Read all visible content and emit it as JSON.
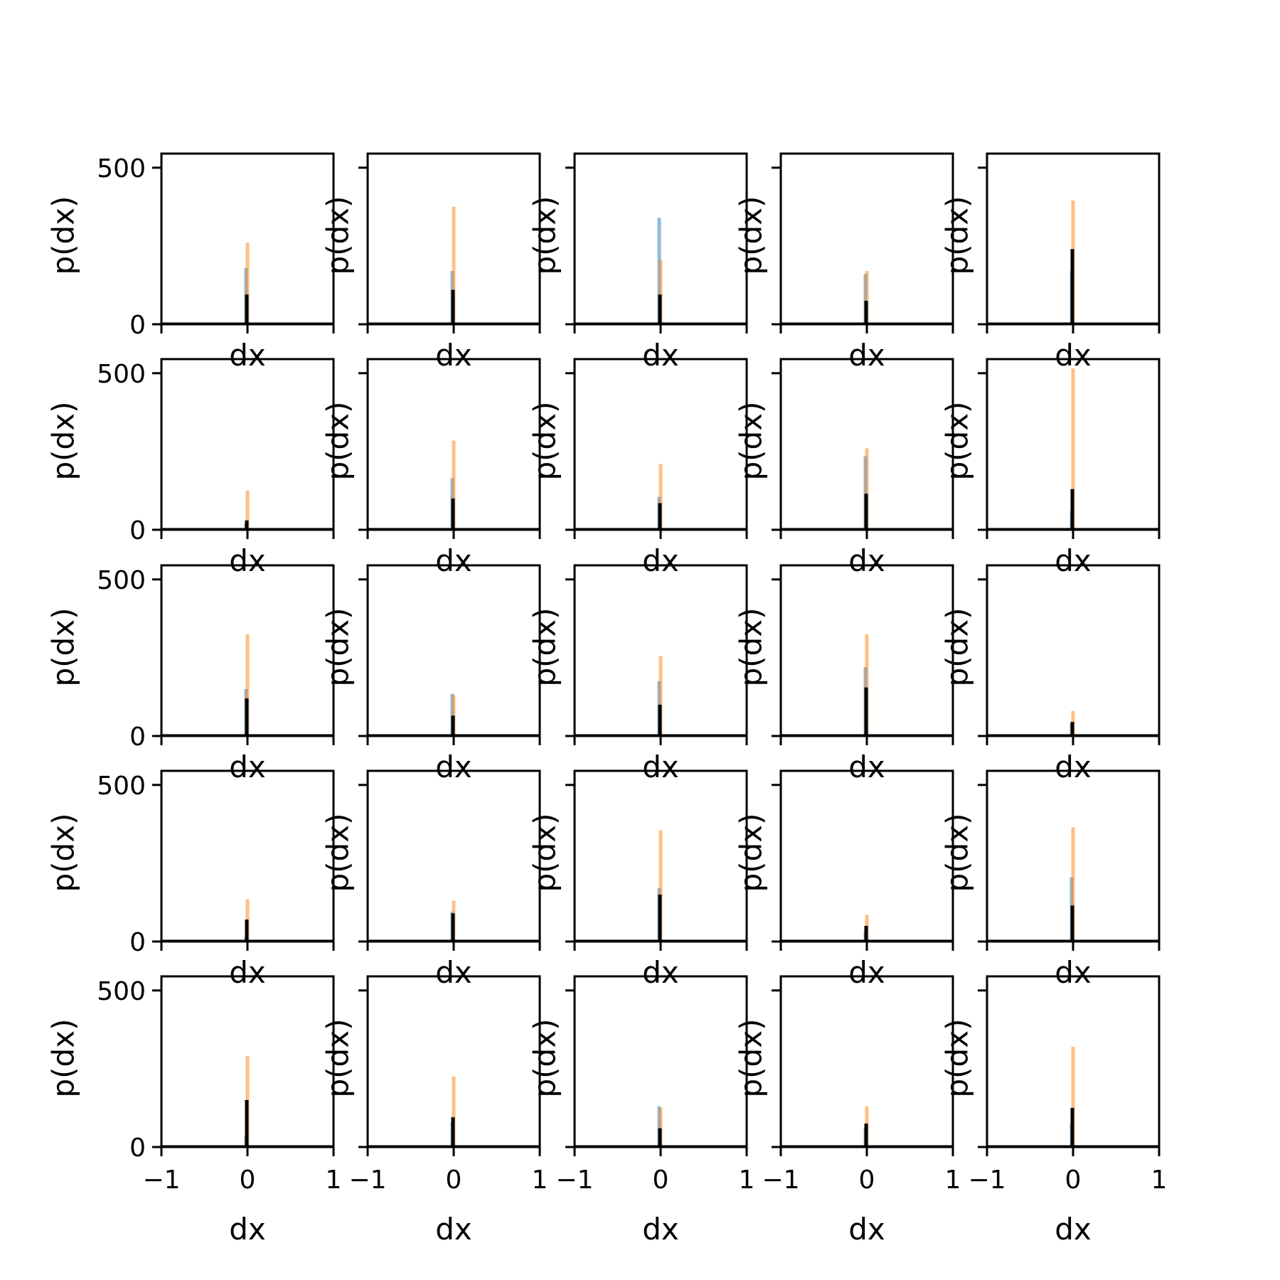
{
  "colors": {
    "series_blue": "#1f77b4",
    "series_orange": "#ff7f0e",
    "series_black": "#000000",
    "axes": "#000000"
  },
  "chart_data": {
    "type": "bar",
    "layout": "grid",
    "rows": 5,
    "cols": 5,
    "sharex": true,
    "sharey": true,
    "xlabel": "dx",
    "ylabel": "p(dx)",
    "xlim": [
      -1,
      1
    ],
    "ylim": [
      0,
      545
    ],
    "xticks": [
      -1,
      0,
      1
    ],
    "xtick_labels": [
      "−1",
      "0",
      "1"
    ],
    "yticks": [
      0,
      500
    ],
    "ytick_labels": [
      "0",
      "500"
    ],
    "grid": false,
    "legend": "none",
    "series_colors": [
      "#1f77b4",
      "#ff7f0e",
      "#000000"
    ],
    "panels": [
      {
        "row": 0,
        "col": 0,
        "blue": 180,
        "orange": 260,
        "black": 95
      },
      {
        "row": 0,
        "col": 1,
        "blue": 170,
        "orange": 375,
        "black": 110
      },
      {
        "row": 0,
        "col": 2,
        "blue": 340,
        "orange": 205,
        "black": 95
      },
      {
        "row": 0,
        "col": 3,
        "blue": 160,
        "orange": 170,
        "black": 75
      },
      {
        "row": 0,
        "col": 4,
        "blue": 170,
        "orange": 395,
        "black": 240
      },
      {
        "row": 1,
        "col": 0,
        "blue": 20,
        "orange": 125,
        "black": 30
      },
      {
        "row": 1,
        "col": 1,
        "blue": 165,
        "orange": 285,
        "black": 100
      },
      {
        "row": 1,
        "col": 2,
        "blue": 105,
        "orange": 210,
        "black": 85
      },
      {
        "row": 1,
        "col": 3,
        "blue": 235,
        "orange": 260,
        "black": 115
      },
      {
        "row": 1,
        "col": 4,
        "blue": 60,
        "orange": 515,
        "black": 130
      },
      {
        "row": 2,
        "col": 0,
        "blue": 150,
        "orange": 325,
        "black": 120
      },
      {
        "row": 2,
        "col": 1,
        "blue": 135,
        "orange": 130,
        "black": 65
      },
      {
        "row": 2,
        "col": 2,
        "blue": 175,
        "orange": 255,
        "black": 100
      },
      {
        "row": 2,
        "col": 3,
        "blue": 220,
        "orange": 325,
        "black": 155
      },
      {
        "row": 2,
        "col": 4,
        "blue": 40,
        "orange": 80,
        "black": 45
      },
      {
        "row": 3,
        "col": 0,
        "blue": 15,
        "orange": 135,
        "black": 70
      },
      {
        "row": 3,
        "col": 1,
        "blue": 95,
        "orange": 130,
        "black": 90
      },
      {
        "row": 3,
        "col": 2,
        "blue": 170,
        "orange": 355,
        "black": 150
      },
      {
        "row": 3,
        "col": 3,
        "blue": 30,
        "orange": 85,
        "black": 50
      },
      {
        "row": 3,
        "col": 4,
        "blue": 205,
        "orange": 365,
        "black": 115
      },
      {
        "row": 4,
        "col": 0,
        "blue": 35,
        "orange": 290,
        "black": 150
      },
      {
        "row": 4,
        "col": 1,
        "blue": 80,
        "orange": 225,
        "black": 95
      },
      {
        "row": 4,
        "col": 2,
        "blue": 130,
        "orange": 125,
        "black": 60
      },
      {
        "row": 4,
        "col": 3,
        "blue": 60,
        "orange": 130,
        "black": 75
      },
      {
        "row": 4,
        "col": 4,
        "blue": 75,
        "orange": 320,
        "black": 125
      }
    ]
  }
}
